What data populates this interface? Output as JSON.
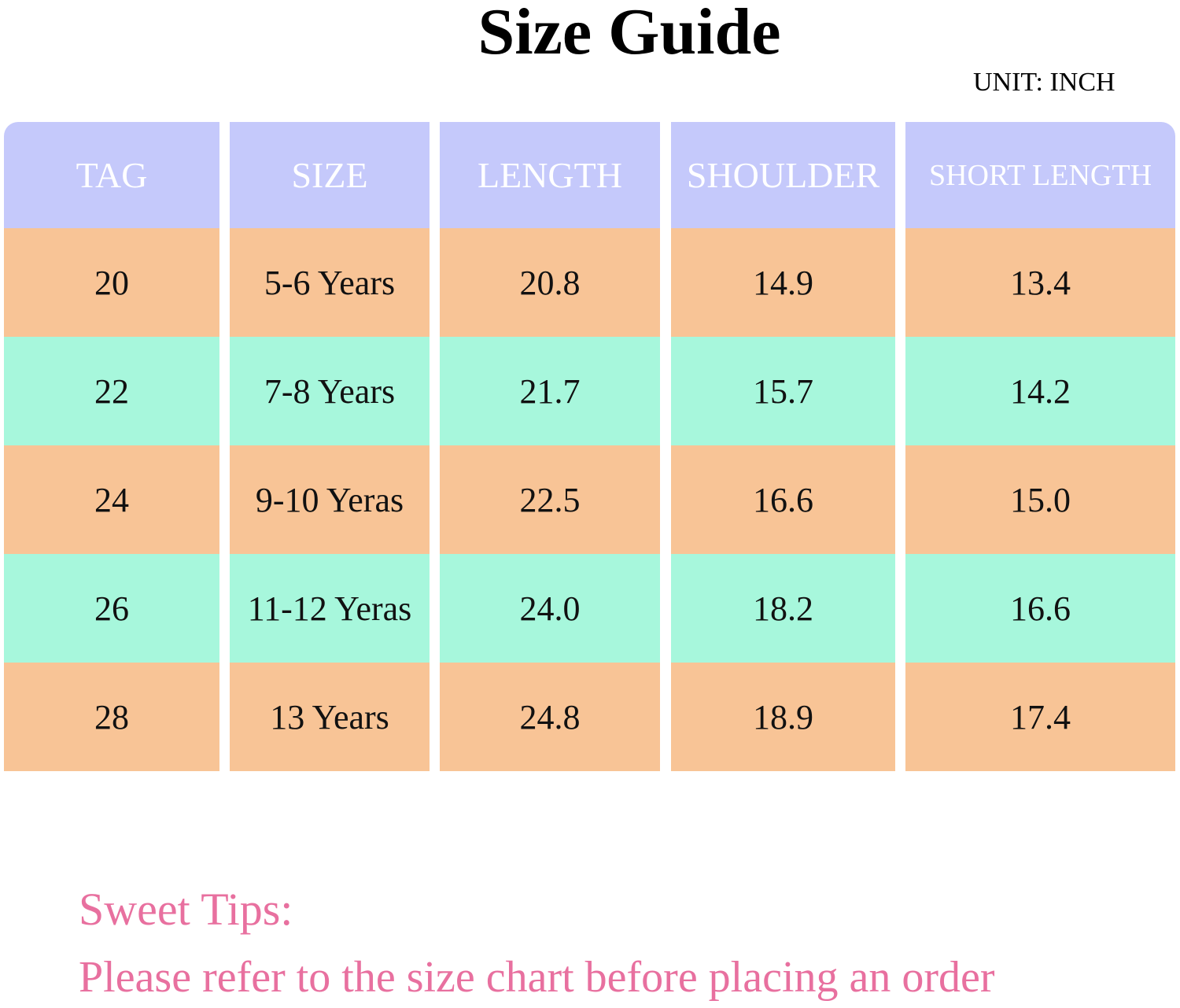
{
  "title": "Size Guide",
  "unit": "UNIT: INCH",
  "colors": {
    "header": "#c5c9fb",
    "row_orange": "#f8c496",
    "row_mint": "#a7f7dc",
    "tips": "#e8709f"
  },
  "table": {
    "headers": [
      "TAG",
      "SIZE",
      "LENGTH",
      "SHOULDER",
      "SHORT LENGTH"
    ],
    "rows": [
      [
        "20",
        "5-6 Years",
        "20.8",
        "14.9",
        "13.4"
      ],
      [
        "22",
        "7-8 Years",
        "21.7",
        "15.7",
        "14.2"
      ],
      [
        "24",
        "9-10 Yeras",
        "22.5",
        "16.6",
        "15.0"
      ],
      [
        "26",
        "11-12 Yeras",
        "24.0",
        "18.2",
        "16.6"
      ],
      [
        "28",
        "13 Years",
        "24.8",
        "18.9",
        "17.4"
      ]
    ]
  },
  "tips": {
    "heading": "Sweet Tips:",
    "text": "Please refer to the size chart before placing an order"
  }
}
